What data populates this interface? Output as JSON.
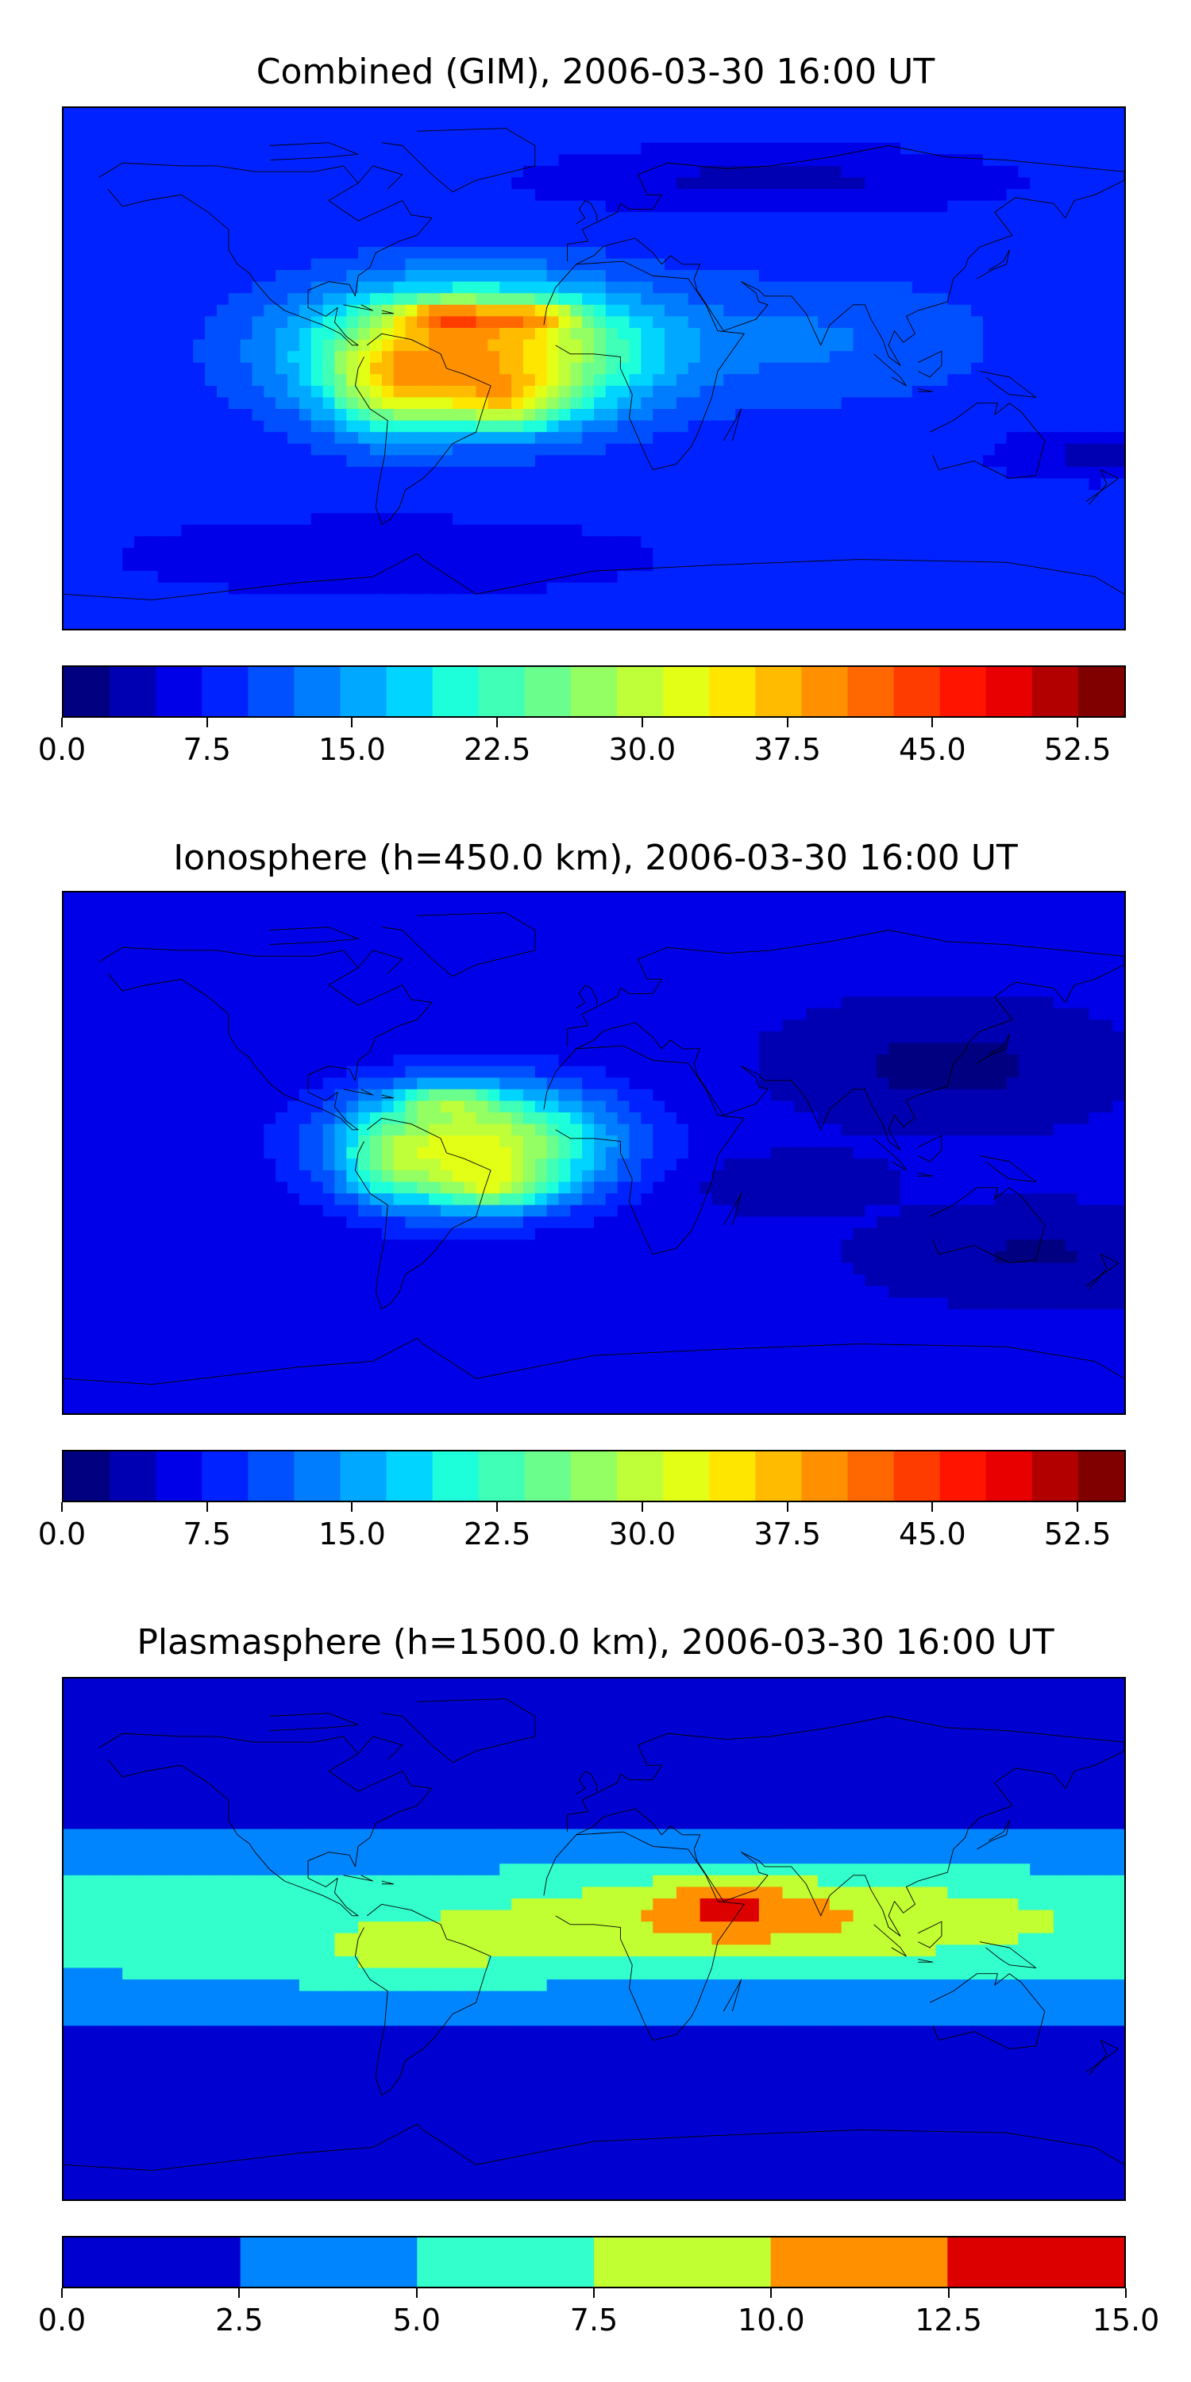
{
  "colors": {
    "jet23": [
      "#000080",
      "#0000b2",
      "#0000e8",
      "#0022ff",
      "#0050ff",
      "#007cff",
      "#00a8ff",
      "#00d4ff",
      "#1cffda",
      "#40ffb6",
      "#6aff8c",
      "#94ff62",
      "#beff39",
      "#e2ff15",
      "#ffe600",
      "#ffbb00",
      "#ff9100",
      "#ff6800",
      "#ff3c00",
      "#ff1400",
      "#e80000",
      "#b20000",
      "#800000"
    ],
    "plasma6": [
      "#0000d0",
      "#0085ff",
      "#33ffcc",
      "#c1ff33",
      "#ff9000",
      "#dd0000"
    ],
    "coast": "#000000"
  },
  "chart_data": [
    {
      "type": "heatmap",
      "title": "Combined (GIM), 2006-03-30 16:00 UT",
      "colorbar": {
        "min": 0.0,
        "max": 55.0,
        "levels": 23,
        "tick_values": [
          0.0,
          7.5,
          15.0,
          22.5,
          30.0,
          37.5,
          45.0,
          52.5
        ],
        "tick_labels": [
          "0.0",
          "7.5",
          "15.0",
          "22.5",
          "30.0",
          "37.5",
          "45.0",
          "52.5"
        ]
      },
      "field": {
        "base": 8,
        "features": [
          {
            "lon": -40,
            "lat": 6,
            "sx": 55,
            "sy": 22,
            "amp": 30
          },
          {
            "lon": -70,
            "lat": -8,
            "sx": 20,
            "sy": 16,
            "amp": 12
          },
          {
            "lon": -30,
            "lat": -12,
            "sx": 22,
            "sy": 10,
            "amp": 13
          },
          {
            "lon": -50,
            "lat": 18,
            "sx": 18,
            "sy": 5,
            "amp": 14
          },
          {
            "lon": -20,
            "lat": 18,
            "sx": 15,
            "sy": 5,
            "amp": 11
          },
          {
            "lon": 80,
            "lat": 10,
            "sx": 55,
            "sy": 22,
            "amp": 4
          },
          {
            "lon": 170,
            "lat": -30,
            "sx": 30,
            "sy": 8,
            "amp": -4
          },
          {
            "lon": 60,
            "lat": 65,
            "sx": 70,
            "sy": 10,
            "amp": -4
          },
          {
            "lon": -70,
            "lat": -65,
            "sx": 80,
            "sy": 12,
            "amp": -3
          }
        ]
      }
    },
    {
      "type": "heatmap",
      "title": "Ionosphere  (h=450.0 km), 2006-03-30 16:00 UT",
      "colorbar": {
        "min": 0.0,
        "max": 55.0,
        "levels": 23,
        "tick_values": [
          0.0,
          7.5,
          15.0,
          22.5,
          30.0,
          37.5,
          45.0,
          52.5
        ],
        "tick_labels": [
          "0.0",
          "7.5",
          "15.0",
          "22.5",
          "30.0",
          "37.5",
          "45.0",
          "52.5"
        ]
      },
      "field": {
        "base": 5,
        "features": [
          {
            "lon": -40,
            "lat": 3,
            "sx": 45,
            "sy": 20,
            "amp": 27
          },
          {
            "lon": -50,
            "lat": 18,
            "sx": 16,
            "sy": 5,
            "amp": 9
          },
          {
            "lon": -35,
            "lat": -12,
            "sx": 20,
            "sy": 8,
            "amp": 11
          },
          {
            "lon": -70,
            "lat": -5,
            "sx": 15,
            "sy": 15,
            "amp": 7
          },
          {
            "lon": 120,
            "lat": 30,
            "sx": 40,
            "sy": 15,
            "amp": -4
          },
          {
            "lon": 150,
            "lat": -35,
            "sx": 40,
            "sy": 12,
            "amp": -3
          },
          {
            "lon": 60,
            "lat": -10,
            "sx": 30,
            "sy": 8,
            "amp": -2
          }
        ]
      }
    },
    {
      "type": "heatmap",
      "title": "Plasmasphere (h=1500.0 km), 2006-03-30 16:00 UT",
      "colorbar": {
        "min": 0.0,
        "max": 15.0,
        "levels": 6,
        "tick_values": [
          0.0,
          2.5,
          5.0,
          7.5,
          10.0,
          12.5,
          15.0
        ],
        "tick_labels": [
          "0.0",
          "2.5",
          "5.0",
          "7.5",
          "10.0",
          "12.5",
          "15.0"
        ]
      },
      "field": {
        "base": 1.5,
        "features": [
          {
            "lon": 0,
            "lat": 5,
            "sx": 1000,
            "sy": 26,
            "amp": 5.5
          },
          {
            "lon": 60,
            "lat": 8,
            "sx": 75,
            "sy": 16,
            "amp": 3.5
          },
          {
            "lon": -60,
            "lat": -10,
            "sx": 40,
            "sy": 12,
            "amp": 2.2
          },
          {
            "lon": 45,
            "lat": 12,
            "sx": 22,
            "sy": 10,
            "amp": 3.2
          },
          {
            "lon": 42,
            "lat": 12,
            "sx": 5,
            "sy": 4,
            "amp": 1.8
          }
        ]
      }
    }
  ]
}
